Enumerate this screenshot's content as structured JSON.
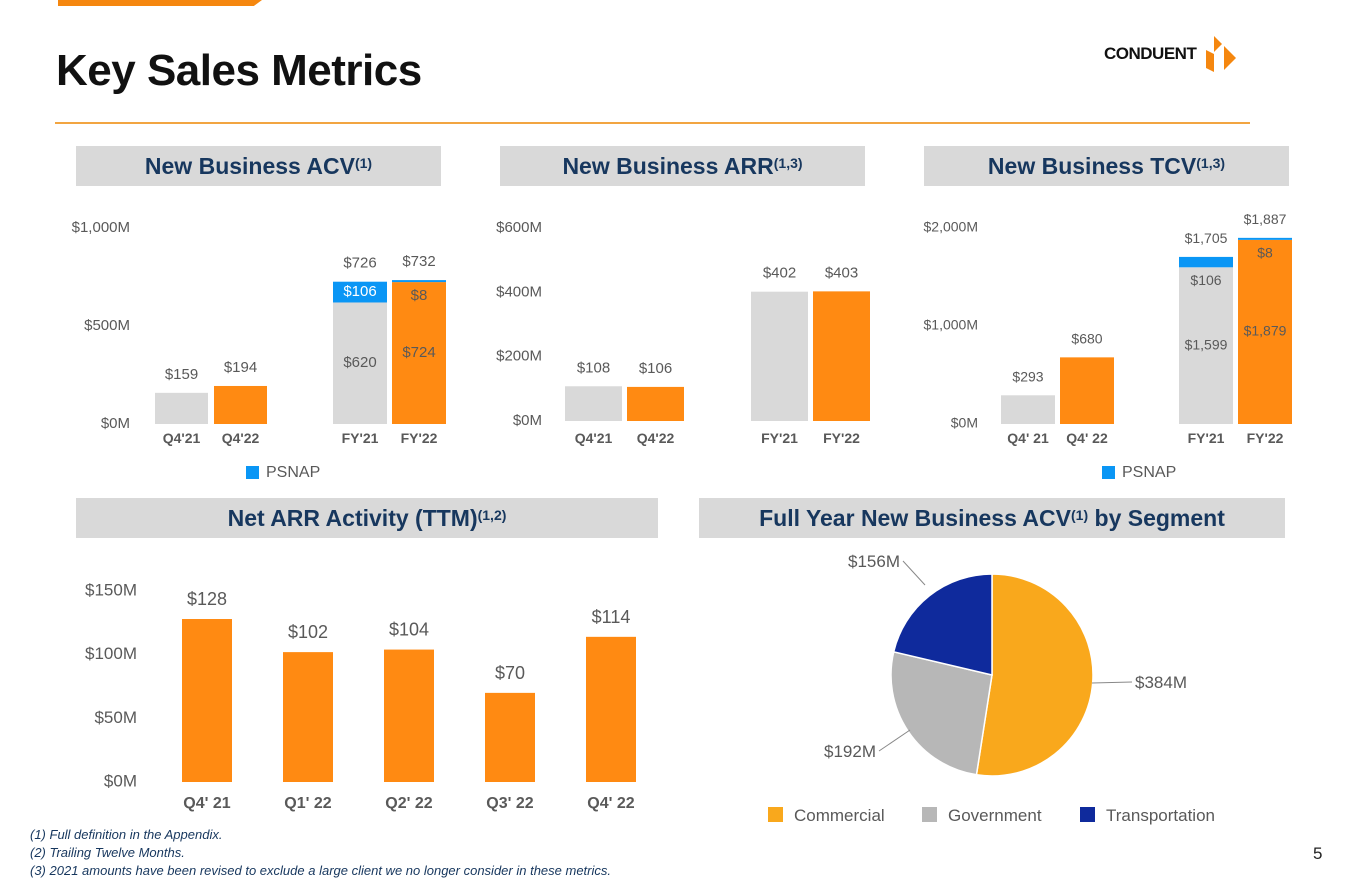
{
  "title": "Key Sales Metrics",
  "logo": {
    "text": "CONDUENT"
  },
  "headers": {
    "acv": {
      "text": "New Business ACV",
      "sup": "(1)"
    },
    "arr": {
      "text": "New Business ARR",
      "sup": "(1,3)"
    },
    "tcv": {
      "text": "New Business TCV",
      "sup": "(1,3)"
    },
    "net": {
      "text": "Net ARR Activity (TTM)",
      "sup": "(1,2)"
    },
    "seg": {
      "text": "Full Year New Business ACV",
      "sup": "(1)",
      "suffix": " by Segment"
    }
  },
  "colors": {
    "gray": "#d9d9d9",
    "orange": "#ff8a12",
    "blue": "#0a96f5",
    "commercial": "#f9a81c",
    "government": "#b7b7b7",
    "transportation": "#0f2a9c"
  },
  "chart_data": [
    {
      "id": "acv",
      "type": "bar",
      "stacked": true,
      "title": "New Business ACV",
      "categories": [
        "Q4'21",
        "Q4'22",
        "FY'21",
        "FY'22"
      ],
      "ylim": [
        0,
        1000
      ],
      "ticks": [
        0,
        500,
        1000
      ],
      "tick_labels": [
        "$0M",
        "$500M",
        "$1,000M"
      ],
      "series": [
        {
          "name": "Base",
          "values": [
            159,
            194,
            620,
            724
          ],
          "labels": [
            "",
            "",
            "$620",
            "$724"
          ],
          "colors": [
            "gray",
            "orange",
            "gray",
            "orange"
          ]
        },
        {
          "name": "PSNAP",
          "values": [
            0,
            0,
            106,
            8
          ],
          "labels": [
            "",
            "",
            "$106",
            "$8"
          ]
        }
      ],
      "totals": [
        "$159",
        "$194",
        "$726",
        "$732"
      ],
      "legend": [
        "PSNAP"
      ]
    },
    {
      "id": "arr",
      "type": "bar",
      "title": "New Business ARR",
      "categories": [
        "Q4'21",
        "Q4'22",
        "FY'21",
        "FY'22"
      ],
      "ylim": [
        0,
        600
      ],
      "ticks": [
        0,
        200,
        400,
        600
      ],
      "tick_labels": [
        "$0M",
        "$200M",
        "$400M",
        "$600M"
      ],
      "series": [
        {
          "name": "ARR",
          "values": [
            108,
            106,
            402,
            403
          ],
          "labels": [
            "",
            "",
            "",
            ""
          ],
          "colors": [
            "gray",
            "orange",
            "gray",
            "orange"
          ]
        }
      ],
      "totals": [
        "$108",
        "$106",
        "$402",
        "$403"
      ]
    },
    {
      "id": "tcv",
      "type": "bar",
      "stacked": true,
      "title": "New Business TCV",
      "categories": [
        "Q4' 21",
        "Q4' 22",
        "FY'21",
        "FY'22"
      ],
      "ylim": [
        0,
        2000
      ],
      "ticks": [
        0,
        1000,
        2000
      ],
      "tick_labels": [
        "$0M",
        "$1,000M",
        "$2,000M"
      ],
      "series": [
        {
          "name": "Base",
          "values": [
            293,
            680,
            1599,
            1879
          ],
          "labels": [
            "",
            "",
            "$1,599",
            "$1,879"
          ],
          "colors": [
            "gray",
            "orange",
            "gray",
            "orange"
          ]
        },
        {
          "name": "PSNAP",
          "values": [
            0,
            0,
            106,
            8
          ],
          "labels": [
            "",
            "",
            "$106",
            "$8"
          ]
        }
      ],
      "totals": [
        "$293",
        "$680",
        "$1,705",
        "$1,887"
      ],
      "legend": [
        "PSNAP"
      ]
    },
    {
      "id": "net",
      "type": "bar",
      "title": "Net ARR Activity (TTM)",
      "categories": [
        "Q4' 21",
        "Q1' 22",
        "Q2' 22",
        "Q3' 22",
        "Q4' 22"
      ],
      "ylim": [
        0,
        150
      ],
      "ticks": [
        0,
        50,
        100,
        150
      ],
      "tick_labels": [
        "$0M",
        "$50M",
        "$100M",
        "$150M"
      ],
      "series": [
        {
          "name": "Net ARR",
          "values": [
            128,
            102,
            104,
            70,
            114
          ],
          "labels": [
            "",
            "",
            "",
            "",
            ""
          ],
          "colors": [
            "orange",
            "orange",
            "orange",
            "orange",
            "orange"
          ]
        }
      ],
      "totals": [
        "$128",
        "$102",
        "$104",
        "$70",
        "$114"
      ]
    },
    {
      "id": "seg",
      "type": "pie",
      "title": "Full Year New Business ACV by Segment",
      "slices": [
        {
          "name": "Commercial",
          "value": 384,
          "label": "$384M",
          "color": "commercial"
        },
        {
          "name": "Government",
          "value": 192,
          "label": "$192M",
          "color": "government"
        },
        {
          "name": "Transportation",
          "value": 156,
          "label": "$156M",
          "color": "transportation"
        }
      ],
      "legend": "bottom"
    }
  ],
  "footnotes": [
    "(1) Full definition in the Appendix.",
    "(2) Trailing Twelve Months.",
    "(3) 2021 amounts have been revised to exclude a large client we no longer consider in these metrics."
  ],
  "page_number": "5"
}
